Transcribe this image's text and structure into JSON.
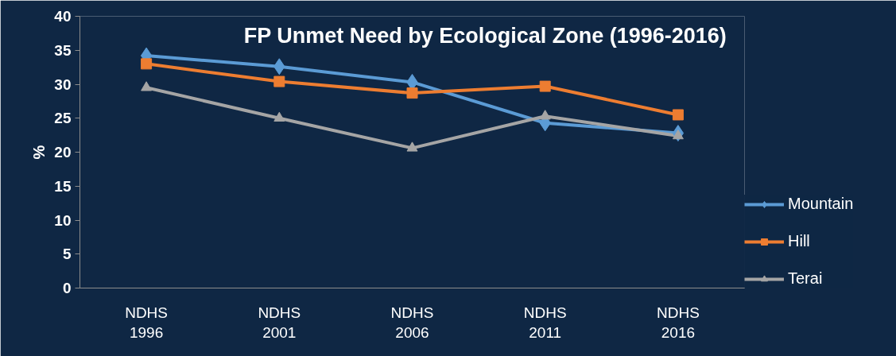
{
  "chart_data": {
    "type": "line",
    "title": "FP Unmet Need by Ecological Zone (1996-2016)",
    "ylabel": "%",
    "categories": [
      "NDHS 1996",
      "NDHS 2001",
      "NDHS 2006",
      "NDHS 2011",
      "NDHS 2016"
    ],
    "series": [
      {
        "name": "Mountain",
        "color": "#5b9bd5",
        "marker": "diamond",
        "values": [
          34.2,
          32.6,
          30.3,
          24.3,
          22.8
        ]
      },
      {
        "name": "Hill",
        "color": "#ed7d31",
        "marker": "square",
        "values": [
          33.0,
          30.4,
          28.7,
          29.7,
          25.5
        ]
      },
      {
        "name": "Terai",
        "color": "#a5a5a5",
        "marker": "triangle",
        "values": [
          29.5,
          25.0,
          20.6,
          25.3,
          22.4
        ]
      }
    ],
    "ylim": [
      0,
      40
    ],
    "yticks": [
      0,
      5,
      10,
      15,
      20,
      25,
      30,
      35,
      40
    ],
    "grid": false,
    "legend": "right"
  }
}
